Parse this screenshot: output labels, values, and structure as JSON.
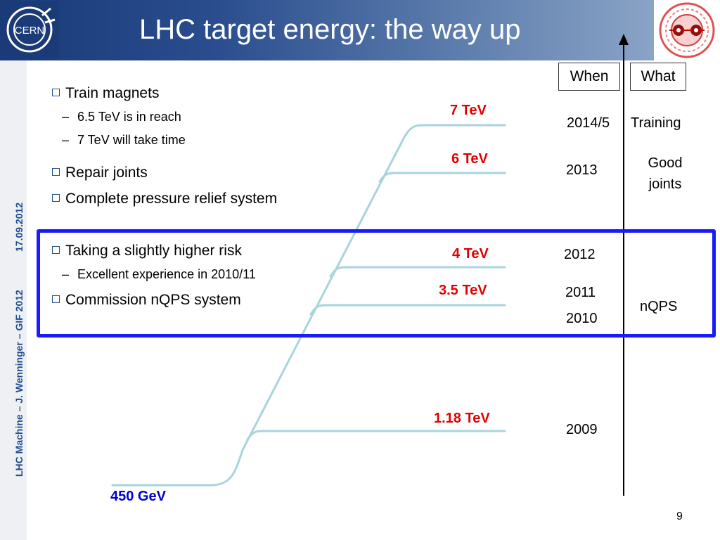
{
  "slide": {
    "title": "LHC target energy: the way up",
    "page_number": "9",
    "sidebar_date": "17.09.2012",
    "sidebar_footer": "LHC Machine  –  J. Wenninger – GIF 2012",
    "logo_text": "CERN"
  },
  "columns": {
    "when": "When",
    "what": "What"
  },
  "bullets": [
    {
      "text": "Train magnets",
      "subs": [
        "6.5 TeV is in reach",
        "7 TeV will take time"
      ]
    },
    {
      "text": "Repair joints",
      "subs": []
    },
    {
      "text": "Complete pressure relief system",
      "subs": []
    },
    {
      "text": "Taking a slightly higher risk",
      "subs": [
        "Excellent experience in 2010/11"
      ]
    },
    {
      "text": "Commission nQPS system",
      "subs": []
    }
  ],
  "energy_levels": [
    {
      "label": "7 TeV",
      "year": "2014/5",
      "what": "Training"
    },
    {
      "label": "6 TeV",
      "year": "2013",
      "what": "Good joints"
    },
    {
      "label": "4 TeV",
      "year": "2012",
      "what": ""
    },
    {
      "label": "3.5 TeV",
      "year": "2011",
      "what": "nQPS"
    },
    {
      "label": "",
      "year": "2010",
      "what": ""
    },
    {
      "label": "1.18 TeV",
      "year": "2009",
      "what": ""
    },
    {
      "label": "450 GeV",
      "year": "",
      "what": ""
    }
  ],
  "colors": {
    "header_dark": "#1a3a78",
    "energy_red": "#e00000",
    "base_blue": "#0000d0",
    "highlight_box": "#1a1aff",
    "curve": "#a8d4dc"
  }
}
